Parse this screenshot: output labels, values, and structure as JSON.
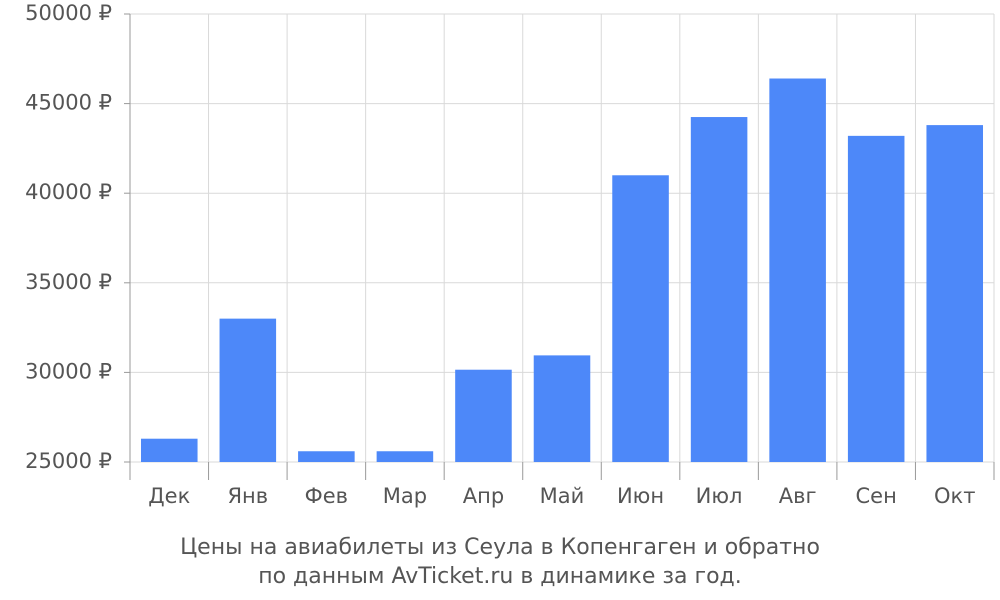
{
  "chart_data": {
    "type": "bar",
    "categories": [
      "Дек",
      "Янв",
      "Фев",
      "Мар",
      "Апр",
      "Май",
      "Июн",
      "Июл",
      "Авг",
      "Сен",
      "Окт"
    ],
    "values": [
      26300,
      33000,
      25600,
      25600,
      30150,
      30950,
      41000,
      44250,
      46400,
      43200,
      43800
    ],
    "color": "#4d88f9",
    "ylim": [
      25000,
      50000
    ],
    "yticks": [
      {
        "value": 25000,
        "label": "25000 ₽"
      },
      {
        "value": 30000,
        "label": "30000 ₽"
      },
      {
        "value": 35000,
        "label": "35000 ₽"
      },
      {
        "value": 40000,
        "label": "40000 ₽"
      },
      {
        "value": 45000,
        "label": "45000 ₽"
      },
      {
        "value": 50000,
        "label": "50000 ₽"
      }
    ],
    "grid": true,
    "caption": [
      "Цены на авиабилеты из Сеула в Копенгаген и обратно",
      "по данным AvTicket.ru в динамике за год."
    ]
  }
}
